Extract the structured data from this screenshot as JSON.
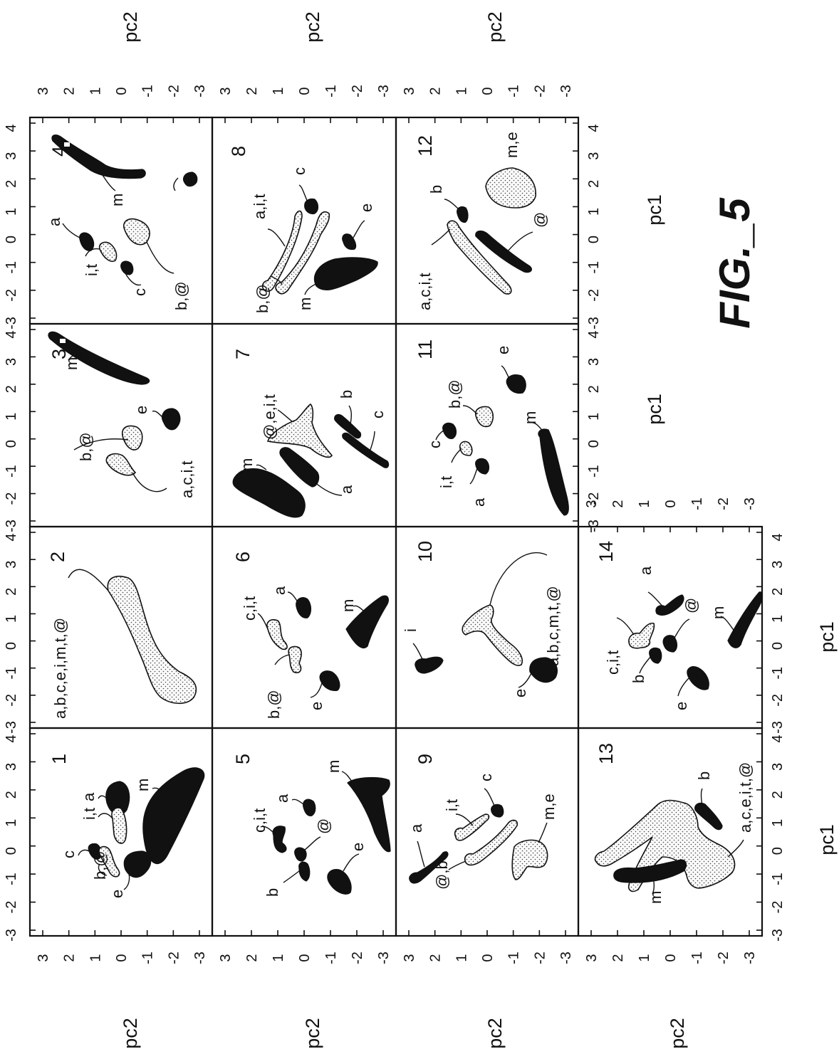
{
  "figure": {
    "label": "FIG._5"
  },
  "axes": {
    "xlabel": "pc1",
    "ylabel": "pc2",
    "xticks": [
      "-3",
      "-2",
      "-1",
      "0",
      "1",
      "2",
      "3",
      "4"
    ],
    "yticks": [
      "3",
      "2",
      "1",
      "0",
      "-1",
      "-2",
      "-3"
    ]
  },
  "panels": [
    {
      "number": "1",
      "labels": [
        "i,t",
        "a",
        "c",
        "b,@",
        "m",
        "e"
      ]
    },
    {
      "number": "2",
      "labels": [
        "a,b,c,e,i,m,t,@"
      ]
    },
    {
      "number": "3",
      "labels": [
        "m",
        "e",
        "b,@",
        "a,c,i,t"
      ]
    },
    {
      "number": "4",
      "labels": [
        "a",
        "i,t",
        "c",
        "b,@",
        "m",
        "e"
      ]
    },
    {
      "number": "5",
      "labels": [
        "c,i,t",
        "a",
        "@",
        "b",
        "m",
        "e"
      ]
    },
    {
      "number": "6",
      "labels": [
        "c,i,t",
        "a",
        "b,@",
        "e",
        "m"
      ]
    },
    {
      "number": "7",
      "labels": [
        "m",
        "@,e,i,t",
        "a",
        "b",
        "c"
      ]
    },
    {
      "number": "8",
      "labels": [
        "a,i,t",
        "c",
        "e",
        "b,@",
        "m"
      ]
    },
    {
      "number": "9",
      "labels": [
        "a",
        "i,t",
        "c",
        "@,b",
        "m,e"
      ]
    },
    {
      "number": "10",
      "labels": [
        "i",
        "a,b,c,m,t,@",
        "e"
      ]
    },
    {
      "number": "11",
      "labels": [
        "c",
        "b,@",
        "i,t",
        "a",
        "m",
        "e"
      ]
    },
    {
      "number": "12",
      "labels": [
        "b",
        "m,e",
        "a,c,i,t",
        "@"
      ]
    },
    {
      "number": "13",
      "labels": [
        "m",
        "b",
        "a,c,e,i,t,@"
      ]
    },
    {
      "number": "14",
      "labels": [
        "a",
        "@",
        "c,i,t",
        "b",
        "e",
        "m"
      ]
    }
  ]
}
